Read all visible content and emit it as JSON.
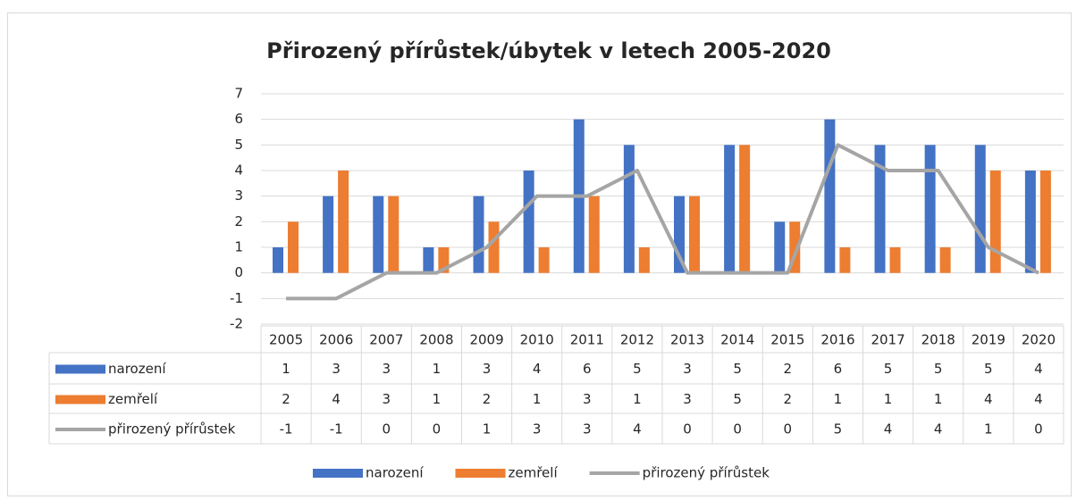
{
  "chart_data": {
    "type": "bar",
    "title": "Přirozený přírůstek/úbytek v letech 2005-2020",
    "categories": [
      "2005",
      "2006",
      "2007",
      "2008",
      "2009",
      "2010",
      "2011",
      "2012",
      "2013",
      "2014",
      "2015",
      "2016",
      "2017",
      "2018",
      "2019",
      "2020"
    ],
    "series": [
      {
        "name": "narození",
        "type": "bar",
        "color": "#4472c4",
        "values": [
          1,
          3,
          3,
          1,
          3,
          4,
          6,
          5,
          3,
          5,
          2,
          6,
          5,
          5,
          5,
          4
        ]
      },
      {
        "name": "zemřelí",
        "type": "bar",
        "color": "#ed7d31",
        "values": [
          2,
          4,
          3,
          1,
          2,
          1,
          3,
          1,
          3,
          5,
          2,
          1,
          1,
          1,
          4,
          4
        ]
      },
      {
        "name": "přirozený přírůstek",
        "type": "line",
        "color": "#a5a5a5",
        "values": [
          -1,
          -1,
          0,
          0,
          1,
          3,
          3,
          4,
          0,
          0,
          0,
          5,
          4,
          4,
          1,
          0
        ]
      }
    ],
    "ylim": [
      -2,
      7
    ],
    "yticks": [
      -2,
      -1,
      0,
      1,
      2,
      3,
      4,
      5,
      6,
      7
    ],
    "grid": true,
    "legend": "bottom",
    "data_table": true
  }
}
